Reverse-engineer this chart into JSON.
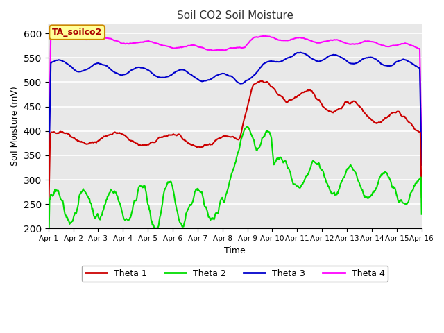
{
  "title": "Soil CO2 Soil Moisture",
  "xlabel": "Time",
  "ylabel": "Soil Moisture (mV)",
  "annotation": "TA_soilco2",
  "ylim": [
    200,
    620
  ],
  "yticks": [
    200,
    250,
    300,
    350,
    400,
    450,
    500,
    550,
    600
  ],
  "xlim": [
    0,
    15
  ],
  "xtick_labels": [
    "Apr 1",
    "Apr 2",
    "Apr 3",
    "Apr 4",
    "Apr 5",
    "Apr 6",
    "Apr 7",
    "Apr 8",
    "Apr 9",
    "Apr 10",
    "Apr 11",
    "Apr 12",
    "Apr 13",
    "Apr 14",
    "Apr 15",
    "Apr 16"
  ],
  "bg_color": "#e8e8e8",
  "line_colors": {
    "theta1": "#cc0000",
    "theta2": "#00dd00",
    "theta3": "#0000cc",
    "theta4": "#ff00ff"
  },
  "legend_labels": [
    "Theta 1",
    "Theta 2",
    "Theta 3",
    "Theta 4"
  ],
  "annotation_bg": "#ffff99",
  "annotation_border": "#cc8800",
  "figsize": [
    6.4,
    4.8
  ],
  "dpi": 100
}
